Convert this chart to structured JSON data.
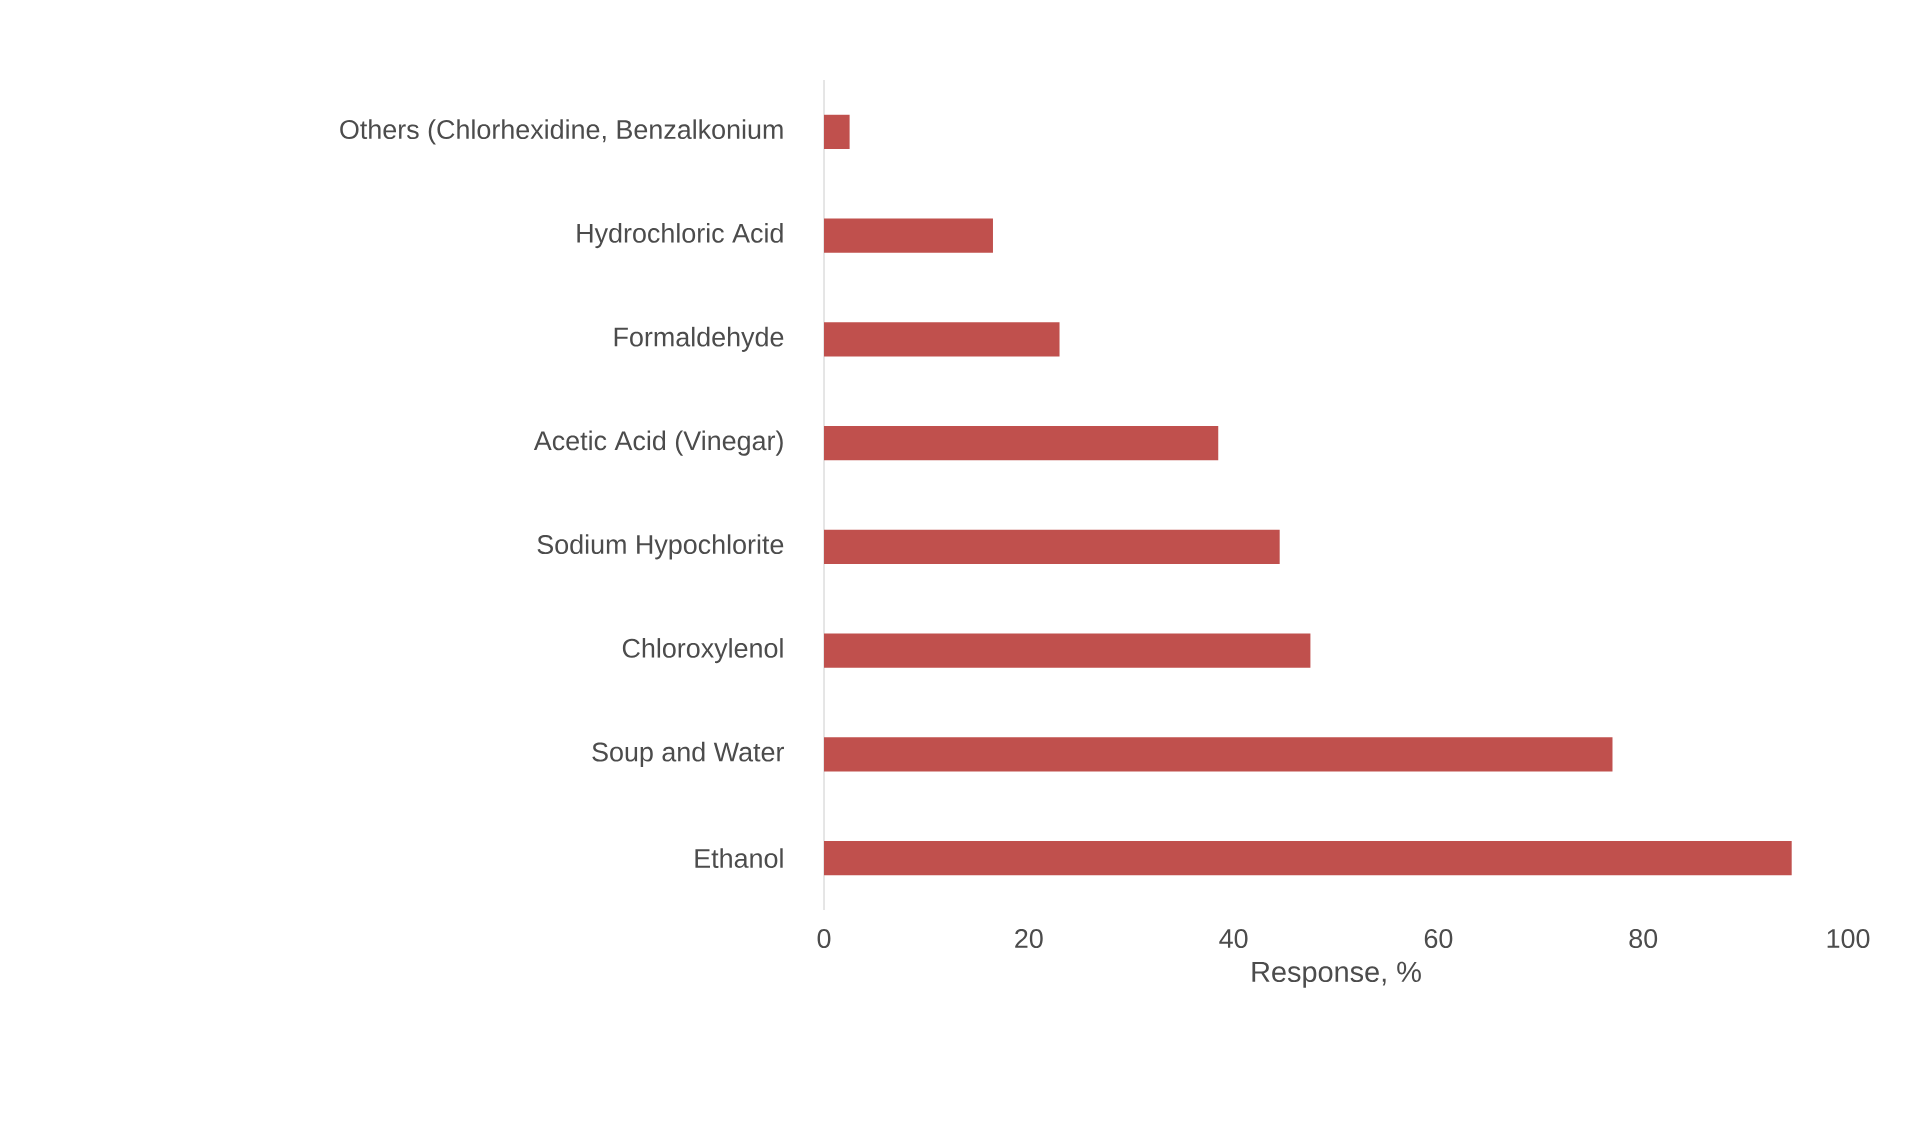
{
  "chart_data": {
    "type": "bar",
    "orientation": "horizontal",
    "categories": [
      "Others (Chlorhexidine, Benzalkonium",
      "Hydrochloric Acid",
      "Formaldehyde",
      "Acetic Acid (Vinegar)",
      "Sodium Hypochlorite",
      "Chloroxylenol",
      "Soup and Water",
      "Ethanol"
    ],
    "values": [
      2.5,
      16.5,
      23,
      38.5,
      44.5,
      47.5,
      77,
      94.5
    ],
    "color": "#c0504d",
    "xlabel": "Response, %",
    "xlim": [
      0,
      100
    ],
    "xticks": [
      0,
      20,
      40,
      60,
      80,
      100
    ],
    "grid": false
  }
}
